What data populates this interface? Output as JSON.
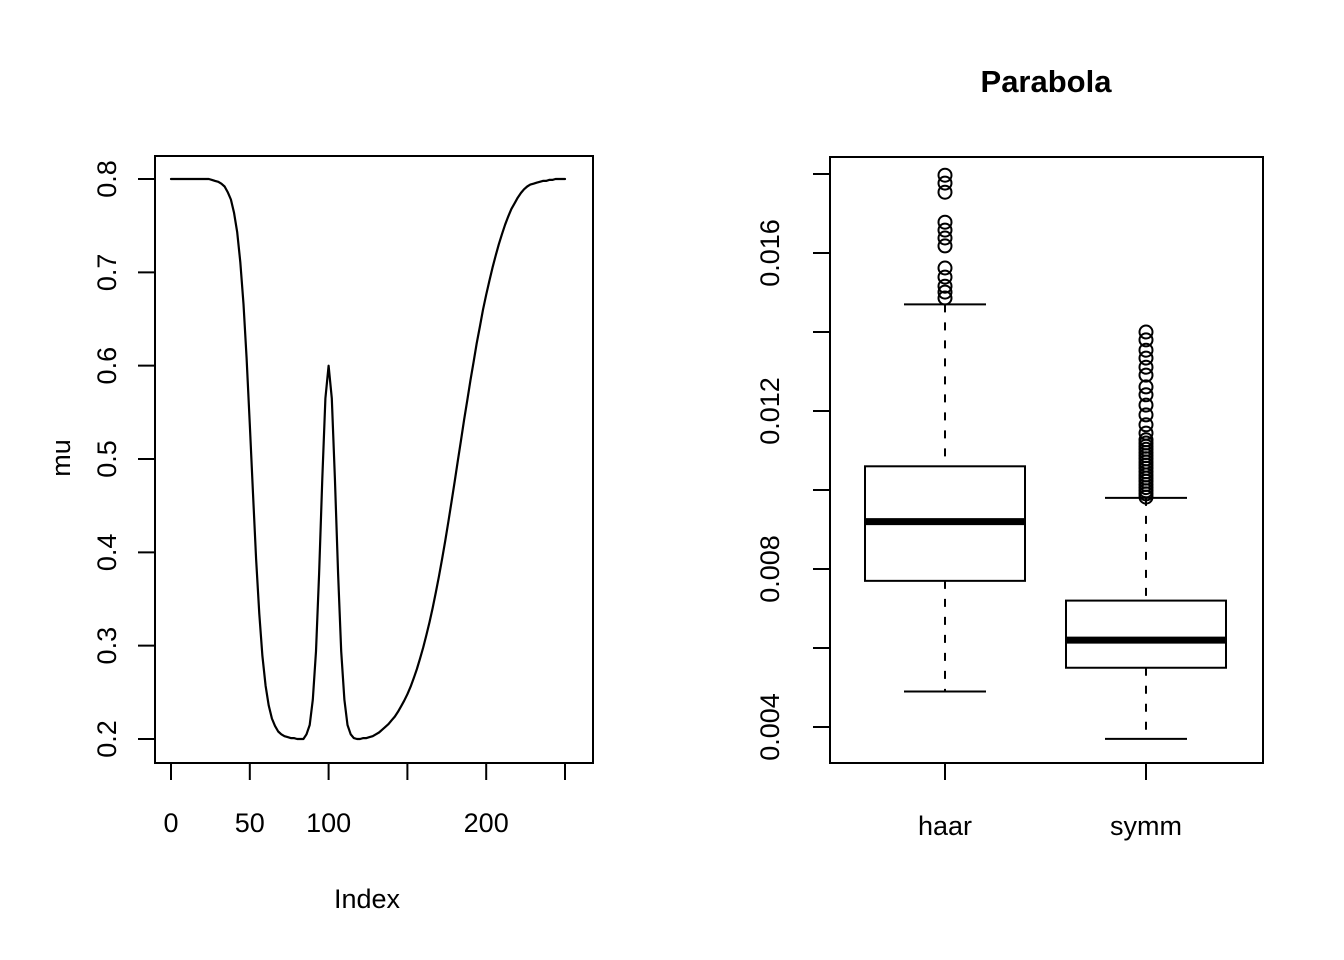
{
  "figure": {
    "background": "#ffffff",
    "foreground": "#000000"
  },
  "chart_data": [
    {
      "type": "line",
      "title": "",
      "xlabel": "Index",
      "ylabel": "mu",
      "xlim": [
        0,
        250
      ],
      "ylim": [
        0.2,
        0.8
      ],
      "grid": "off",
      "x_ticks": [
        0,
        50,
        100,
        150,
        200,
        250
      ],
      "x_tick_labels": [
        "0",
        "50",
        "100",
        "",
        "200",
        ""
      ],
      "y_ticks": [
        0.2,
        0.3,
        0.4,
        0.5,
        0.6,
        0.7,
        0.8
      ],
      "y_tick_labels": [
        "0.2",
        "0.3",
        "0.4",
        "0.5",
        "0.6",
        "0.7",
        "0.8"
      ],
      "line_color": "#000000",
      "points": [
        [
          0,
          0.8
        ],
        [
          2,
          0.8
        ],
        [
          4,
          0.8
        ],
        [
          6,
          0.8
        ],
        [
          8,
          0.8
        ],
        [
          10,
          0.8
        ],
        [
          12,
          0.8
        ],
        [
          14,
          0.8
        ],
        [
          16,
          0.8
        ],
        [
          18,
          0.8
        ],
        [
          20,
          0.8
        ],
        [
          22,
          0.8
        ],
        [
          24,
          0.8
        ],
        [
          26,
          0.799
        ],
        [
          28,
          0.798
        ],
        [
          30,
          0.797
        ],
        [
          32,
          0.795
        ],
        [
          34,
          0.792
        ],
        [
          36,
          0.786
        ],
        [
          38,
          0.778
        ],
        [
          40,
          0.764
        ],
        [
          42,
          0.743
        ],
        [
          44,
          0.711
        ],
        [
          46,
          0.666
        ],
        [
          48,
          0.608
        ],
        [
          50,
          0.537
        ],
        [
          52,
          0.463
        ],
        [
          54,
          0.393
        ],
        [
          56,
          0.334
        ],
        [
          58,
          0.289
        ],
        [
          60,
          0.257
        ],
        [
          62,
          0.236
        ],
        [
          64,
          0.222
        ],
        [
          66,
          0.214
        ],
        [
          68,
          0.208
        ],
        [
          70,
          0.205
        ],
        [
          72,
          0.203
        ],
        [
          74,
          0.202
        ],
        [
          76,
          0.201
        ],
        [
          78,
          0.201
        ],
        [
          80,
          0.2
        ],
        [
          82,
          0.2
        ],
        [
          84,
          0.2
        ],
        [
          86,
          0.205
        ],
        [
          88,
          0.215
        ],
        [
          90,
          0.242
        ],
        [
          92,
          0.294
        ],
        [
          94,
          0.377
        ],
        [
          96,
          0.479
        ],
        [
          98,
          0.565
        ],
        [
          100,
          0.6
        ],
        [
          102,
          0.565
        ],
        [
          104,
          0.479
        ],
        [
          106,
          0.377
        ],
        [
          108,
          0.294
        ],
        [
          110,
          0.242
        ],
        [
          112,
          0.215
        ],
        [
          114,
          0.205
        ],
        [
          116,
          0.201
        ],
        [
          118,
          0.2
        ],
        [
          120,
          0.2
        ],
        [
          122,
          0.201
        ],
        [
          124,
          0.201
        ],
        [
          126,
          0.202
        ],
        [
          128,
          0.203
        ],
        [
          130,
          0.205
        ],
        [
          132,
          0.207
        ],
        [
          134,
          0.21
        ],
        [
          136,
          0.213
        ],
        [
          138,
          0.216
        ],
        [
          140,
          0.22
        ],
        [
          142,
          0.224
        ],
        [
          144,
          0.229
        ],
        [
          146,
          0.235
        ],
        [
          148,
          0.241
        ],
        [
          150,
          0.248
        ],
        [
          152,
          0.256
        ],
        [
          154,
          0.265
        ],
        [
          156,
          0.275
        ],
        [
          158,
          0.286
        ],
        [
          160,
          0.298
        ],
        [
          162,
          0.311
        ],
        [
          164,
          0.325
        ],
        [
          166,
          0.34
        ],
        [
          168,
          0.357
        ],
        [
          170,
          0.374
        ],
        [
          172,
          0.393
        ],
        [
          174,
          0.412
        ],
        [
          176,
          0.433
        ],
        [
          178,
          0.454
        ],
        [
          180,
          0.476
        ],
        [
          182,
          0.498
        ],
        [
          184,
          0.52
        ],
        [
          186,
          0.542
        ],
        [
          188,
          0.563
        ],
        [
          190,
          0.584
        ],
        [
          192,
          0.604
        ],
        [
          194,
          0.624
        ],
        [
          196,
          0.642
        ],
        [
          198,
          0.66
        ],
        [
          200,
          0.676
        ],
        [
          202,
          0.691
        ],
        [
          204,
          0.705
        ],
        [
          206,
          0.718
        ],
        [
          208,
          0.73
        ],
        [
          210,
          0.741
        ],
        [
          212,
          0.751
        ],
        [
          214,
          0.76
        ],
        [
          216,
          0.768
        ],
        [
          218,
          0.774
        ],
        [
          220,
          0.78
        ],
        [
          222,
          0.785
        ],
        [
          224,
          0.789
        ],
        [
          226,
          0.792
        ],
        [
          228,
          0.794
        ],
        [
          230,
          0.795
        ],
        [
          232,
          0.796
        ],
        [
          234,
          0.797
        ],
        [
          236,
          0.798
        ],
        [
          238,
          0.798
        ],
        [
          240,
          0.799
        ],
        [
          242,
          0.799
        ],
        [
          244,
          0.8
        ],
        [
          246,
          0.8
        ],
        [
          248,
          0.8
        ],
        [
          250,
          0.8
        ]
      ]
    },
    {
      "type": "boxplot",
      "title": "Parabola",
      "categories": [
        "haar",
        "symm"
      ],
      "ylim": [
        0.0035,
        0.018
      ],
      "grid": "off",
      "y_ticks": [
        0.004,
        0.006,
        0.008,
        0.01,
        0.012,
        0.014,
        0.016,
        0.018
      ],
      "y_tick_labels": [
        "0.004",
        "",
        "0.008",
        "",
        "0.012",
        "",
        "0.016",
        ""
      ],
      "boxes": [
        {
          "name": "haar",
          "q1": 0.0077,
          "median": 0.0092,
          "q3": 0.0106,
          "whisker_low": 0.0049,
          "whisker_high": 0.0147,
          "outliers": [
            0.01797,
            0.01777,
            0.01754,
            0.01678,
            0.01658,
            0.01638,
            0.01618,
            0.01562,
            0.01539,
            0.01516,
            0.01501,
            0.01486
          ]
        },
        {
          "name": "symm",
          "q1": 0.0055,
          "median": 0.0062,
          "q3": 0.0072,
          "whisker_low": 0.0037,
          "whisker_high": 0.0098,
          "outliers": [
            0.014,
            0.0138,
            0.01354,
            0.01334,
            0.01311,
            0.01291,
            0.01261,
            0.01241,
            0.01215,
            0.0119,
            0.01165,
            0.01144,
            0.01127,
            0.01119,
            0.01111,
            0.01103,
            0.01095,
            0.01087,
            0.01079,
            0.01071,
            0.01063,
            0.01055,
            0.01046,
            0.01038,
            0.0103,
            0.01022,
            0.01014,
            0.01006,
            0.00998,
            0.0099,
            0.00982
          ]
        }
      ]
    }
  ]
}
